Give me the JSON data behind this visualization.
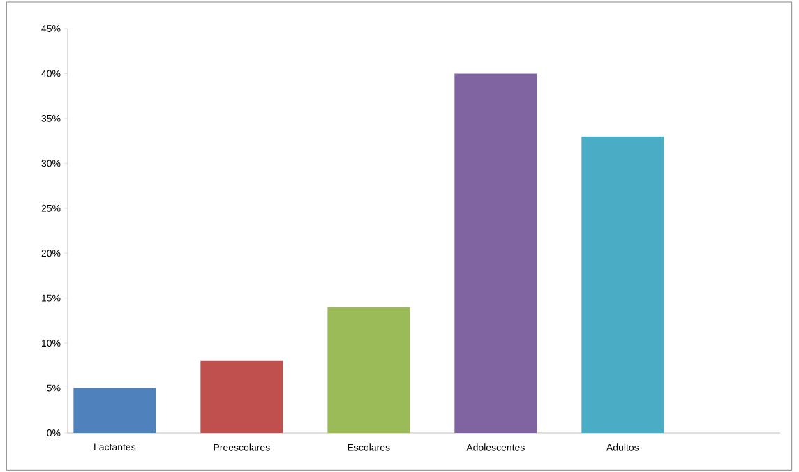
{
  "chart_data": {
    "type": "bar",
    "categories": [
      "Lactantes",
      "Preescolares",
      "Escolares",
      "Adolescentes",
      "Adultos"
    ],
    "values": [
      5,
      8,
      14,
      40,
      33
    ],
    "colors": [
      "#4f81bd",
      "#c0504d",
      "#9bbb59",
      "#8064a2",
      "#4bacc6"
    ],
    "ylim": [
      0,
      45
    ],
    "yticks": [
      {
        "value": 0,
        "label": "0%"
      },
      {
        "value": 5,
        "label": "5%"
      },
      {
        "value": 10,
        "label": "10%"
      },
      {
        "value": 15,
        "label": "15%"
      },
      {
        "value": 20,
        "label": "20%"
      },
      {
        "value": 25,
        "label": "25%"
      },
      {
        "value": 30,
        "label": "30%"
      },
      {
        "value": 35,
        "label": "35%"
      },
      {
        "value": 40,
        "label": "40%"
      },
      {
        "value": 45,
        "label": "45%"
      }
    ],
    "grid": false
  }
}
